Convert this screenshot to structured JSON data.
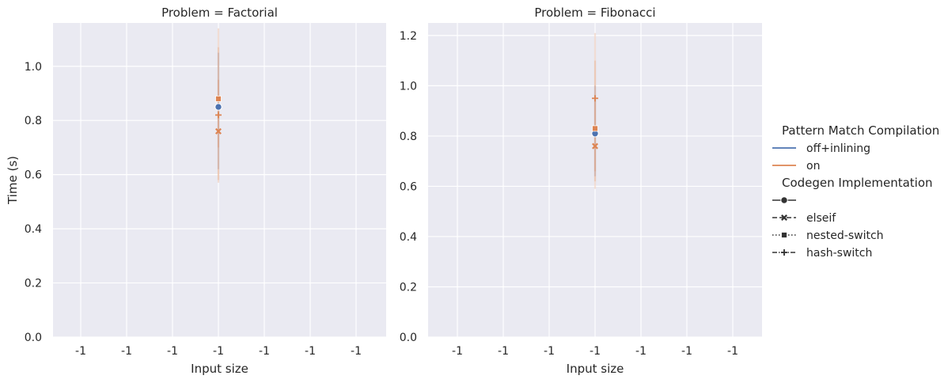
{
  "chart_data": {
    "type": "line",
    "ylabel": "Time (s)",
    "xlabel": "Input size",
    "x_tick_labels": [
      "-1",
      "-1",
      "-1",
      "-1",
      "-1",
      "-1",
      "-1"
    ],
    "colors": {
      "off+inlining": "#4C72B0",
      "on": "#DD8452"
    },
    "grid": true,
    "panels": [
      {
        "title": "Problem = Factorial",
        "ylim": [
          0,
          1.16
        ],
        "y_ticks": [
          0.0,
          0.2,
          0.4,
          0.6,
          0.8,
          1.0
        ],
        "y_tick_labels": [
          "0.0",
          "0.2",
          "0.4",
          "0.6",
          "0.8",
          "1.0"
        ],
        "x": -1,
        "series": [
          {
            "compilation": "off+inlining",
            "codegen": "default",
            "marker": "circle",
            "y": 0.85,
            "ci": [
              0.62,
              1.05
            ]
          },
          {
            "compilation": "on",
            "codegen": "elseif",
            "marker": "x",
            "y": 0.76,
            "ci": [
              0.58,
              0.95
            ]
          },
          {
            "compilation": "on",
            "codegen": "nested-switch",
            "marker": "square",
            "y": 0.88,
            "ci": [
              0.7,
              1.14
            ]
          },
          {
            "compilation": "on",
            "codegen": "hash-switch",
            "marker": "plus",
            "y": 0.82,
            "ci": [
              0.57,
              1.07
            ]
          }
        ]
      },
      {
        "title": "Problem = Fibonacci",
        "ylim": [
          0,
          1.25
        ],
        "y_ticks": [
          0.0,
          0.2,
          0.4,
          0.6,
          0.8,
          1.0,
          1.2
        ],
        "y_tick_labels": [
          "0.0",
          "0.2",
          "0.4",
          "0.6",
          "0.8",
          "1.0",
          "1.2"
        ],
        "x": -1,
        "series": [
          {
            "compilation": "off+inlining",
            "codegen": "default",
            "marker": "circle",
            "y": 0.81,
            "ci": [
              0.64,
              1.0
            ]
          },
          {
            "compilation": "on",
            "codegen": "elseif",
            "marker": "x",
            "y": 0.76,
            "ci": [
              0.59,
              0.94
            ]
          },
          {
            "compilation": "on",
            "codegen": "nested-switch",
            "marker": "square",
            "y": 0.83,
            "ci": [
              0.66,
              1.1
            ]
          },
          {
            "compilation": "on",
            "codegen": "hash-switch",
            "marker": "plus",
            "y": 0.95,
            "ci": [
              0.62,
              1.21
            ]
          }
        ]
      }
    ],
    "legend": {
      "placement": "right",
      "hue_title": "Pattern Match Compilation",
      "hue_entries": [
        {
          "label": "off+inlining",
          "color": "#4C72B0"
        },
        {
          "label": "on",
          "color": "#DD8452"
        }
      ],
      "style_title": "Codegen Implementation",
      "style_entries": [
        {
          "label": "",
          "marker": "circle",
          "dash": "solid"
        },
        {
          "label": "elseif",
          "marker": "x",
          "dash": "dashed"
        },
        {
          "label": "nested-switch",
          "marker": "square",
          "dash": "dotted"
        },
        {
          "label": "hash-switch",
          "marker": "plus",
          "dash": "dashdot"
        }
      ]
    }
  }
}
